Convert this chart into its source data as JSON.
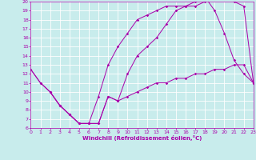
{
  "xlabel": "Windchill (Refroidissement éolien,°C)",
  "xlim": [
    0,
    23
  ],
  "ylim": [
    6,
    20
  ],
  "xticks": [
    0,
    1,
    2,
    3,
    4,
    5,
    6,
    7,
    8,
    9,
    10,
    11,
    12,
    13,
    14,
    15,
    16,
    17,
    18,
    19,
    20,
    21,
    22,
    23
  ],
  "yticks": [
    6,
    7,
    8,
    9,
    10,
    11,
    12,
    13,
    14,
    15,
    16,
    17,
    18,
    19,
    20
  ],
  "bg_color": "#c8ecec",
  "line_color": "#aa00aa",
  "grid_color": "#ffffff",
  "line1_x": [
    0,
    1,
    2,
    3,
    4,
    5,
    6,
    7,
    8,
    9,
    10,
    11,
    12,
    13,
    14,
    15,
    16,
    17,
    18,
    19,
    20,
    21,
    22,
    23
  ],
  "line1_y": [
    12.5,
    11.0,
    10.0,
    8.5,
    7.5,
    6.5,
    6.5,
    6.5,
    9.5,
    9.0,
    9.5,
    10.0,
    10.5,
    11.0,
    11.0,
    11.5,
    11.5,
    12.0,
    12.0,
    12.5,
    12.5,
    13.0,
    13.0,
    11.0
  ],
  "line2_x": [
    0,
    1,
    2,
    3,
    4,
    5,
    6,
    7,
    8,
    9,
    10,
    11,
    12,
    13,
    14,
    15,
    16,
    17,
    18,
    19,
    20,
    21,
    22,
    23
  ],
  "line2_y": [
    12.5,
    11.0,
    10.0,
    8.5,
    7.5,
    6.5,
    6.5,
    9.5,
    13.0,
    15.0,
    16.5,
    18.0,
    18.5,
    19.0,
    19.5,
    19.5,
    19.5,
    20.0,
    20.5,
    19.0,
    16.5,
    13.5,
    12.0,
    11.0
  ],
  "line3_x": [
    2,
    3,
    4,
    5,
    6,
    7,
    8,
    9,
    10,
    11,
    12,
    13,
    14,
    15,
    16,
    17,
    18,
    19,
    20,
    21,
    22,
    23
  ],
  "line3_y": [
    10.0,
    8.5,
    7.5,
    6.5,
    6.5,
    6.5,
    9.5,
    9.0,
    12.0,
    14.0,
    15.0,
    16.0,
    17.5,
    19.0,
    19.5,
    19.5,
    20.0,
    20.5,
    20.5,
    20.0,
    19.5,
    11.0
  ],
  "marker_size": 1.8,
  "line_width": 0.7,
  "tick_fontsize": 4.5,
  "xlabel_fontsize": 5.0
}
